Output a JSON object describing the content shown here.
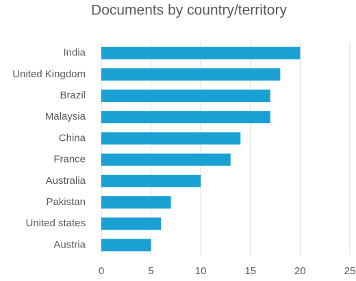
{
  "chart_data": {
    "type": "barh",
    "title": "Documents by country/territory",
    "categories": [
      "India",
      "United Kingdom",
      "Brazil",
      "Malaysia",
      "China",
      "France",
      "Australia",
      "Pakistan",
      "United states",
      "Austria"
    ],
    "values": [
      20,
      18,
      17,
      17,
      14,
      13,
      10,
      7,
      6,
      5
    ],
    "color": "#1aa1d3",
    "xlim": [
      0,
      25
    ],
    "xticks": [
      0,
      5,
      10,
      15,
      20,
      25
    ],
    "grid": true
  }
}
